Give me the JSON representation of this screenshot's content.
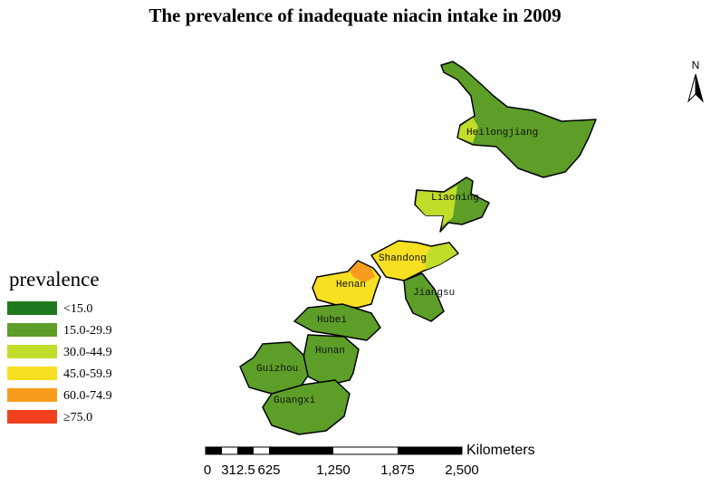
{
  "title": "The prevalence of inadequate niacin intake in 2009",
  "legend": {
    "title": "prevalence",
    "items": [
      {
        "label": "<15.0",
        "color": "#1f7a1f"
      },
      {
        "label": "15.0-29.9",
        "color": "#5c9e27"
      },
      {
        "label": "30.0-44.9",
        "color": "#c2dc2a"
      },
      {
        "label": "45.0-59.9",
        "color": "#f7df22"
      },
      {
        "label": "60.0-74.9",
        "color": "#f79c1c"
      },
      {
        "label": "≥75.0",
        "color": "#f2421d"
      }
    ]
  },
  "regions": [
    "Heilongjiang",
    "Liaoning",
    "Shandong",
    "Henan",
    "Jiangsu",
    "Hubei",
    "Hunan",
    "Guizhou",
    "Guangxi"
  ],
  "north_arrow": "N",
  "scale_bar": {
    "unit": "Kilometers",
    "ticks": [
      "0",
      "312.5",
      "625",
      "1,250",
      "1,875",
      "2,500"
    ]
  }
}
